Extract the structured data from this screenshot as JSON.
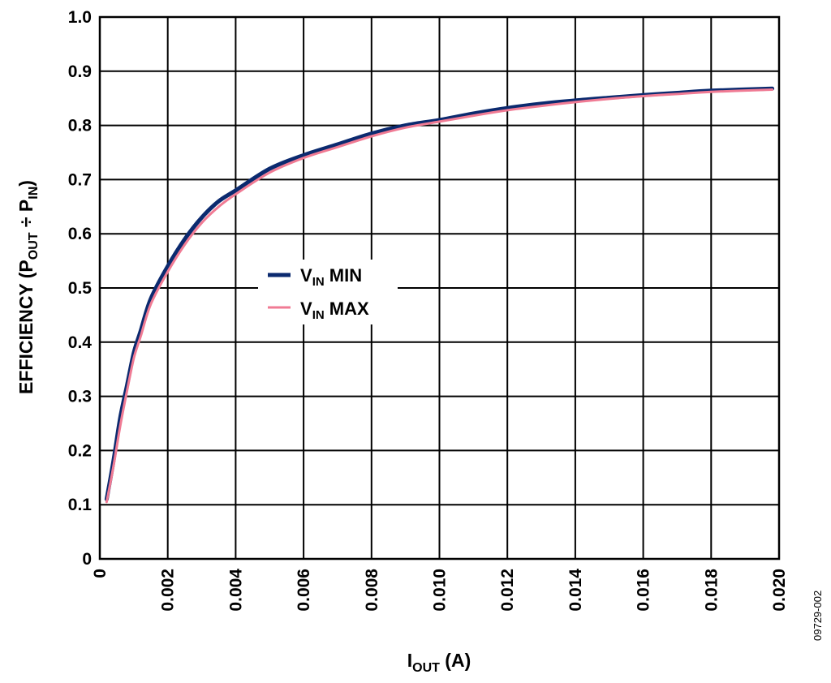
{
  "chart_data": {
    "type": "line",
    "xlabel": {
      "main": "I",
      "sub": "OUT",
      "rest": " (A)"
    },
    "ylabel": {
      "main": "EFFICIENCY (P",
      "sub1": "OUT",
      "mid": " ÷ P",
      "sub2": "IN",
      "end": ")"
    },
    "xlim": [
      0,
      0.02
    ],
    "ylim": [
      0,
      1.0
    ],
    "x_ticks": [
      "0",
      "0.002",
      "0.004",
      "0.006",
      "0.008",
      "0.010",
      "0.012",
      "0.014",
      "0.016",
      "0.018",
      "0.020"
    ],
    "y_ticks": [
      "0",
      "0.1",
      "0.2",
      "0.3",
      "0.4",
      "0.5",
      "0.6",
      "0.7",
      "0.8",
      "0.9",
      "1.0"
    ],
    "grid": true,
    "legend_position": "center-left",
    "figure_id": "09729-002",
    "series": [
      {
        "name": {
          "main": "V",
          "sub": "IN",
          "rest": " MIN"
        },
        "color": "#0b2a6f",
        "x": [
          0.0002,
          0.0004,
          0.0006,
          0.0008,
          0.001,
          0.0012,
          0.0015,
          0.002,
          0.0025,
          0.003,
          0.0035,
          0.004,
          0.005,
          0.006,
          0.007,
          0.008,
          0.009,
          0.01,
          0.011,
          0.012,
          0.013,
          0.014,
          0.015,
          0.016,
          0.017,
          0.018,
          0.0198
        ],
        "y": [
          0.11,
          0.18,
          0.26,
          0.32,
          0.38,
          0.42,
          0.48,
          0.54,
          0.59,
          0.63,
          0.66,
          0.68,
          0.72,
          0.745,
          0.765,
          0.785,
          0.8,
          0.81,
          0.822,
          0.832,
          0.84,
          0.846,
          0.851,
          0.856,
          0.86,
          0.864,
          0.868
        ]
      },
      {
        "name": {
          "main": "V",
          "sub": "IN",
          "rest": " MAX"
        },
        "color": "#f07b94",
        "x": [
          0.0002,
          0.0004,
          0.0006,
          0.0008,
          0.001,
          0.0012,
          0.0015,
          0.002,
          0.0025,
          0.003,
          0.0035,
          0.004,
          0.005,
          0.006,
          0.007,
          0.008,
          0.009,
          0.01,
          0.011,
          0.012,
          0.013,
          0.014,
          0.015,
          0.016,
          0.017,
          0.018,
          0.0198
        ],
        "y": [
          0.105,
          0.17,
          0.245,
          0.31,
          0.37,
          0.41,
          0.47,
          0.53,
          0.58,
          0.62,
          0.65,
          0.673,
          0.713,
          0.74,
          0.76,
          0.78,
          0.796,
          0.807,
          0.818,
          0.828,
          0.836,
          0.843,
          0.849,
          0.854,
          0.858,
          0.862,
          0.866
        ]
      }
    ]
  }
}
